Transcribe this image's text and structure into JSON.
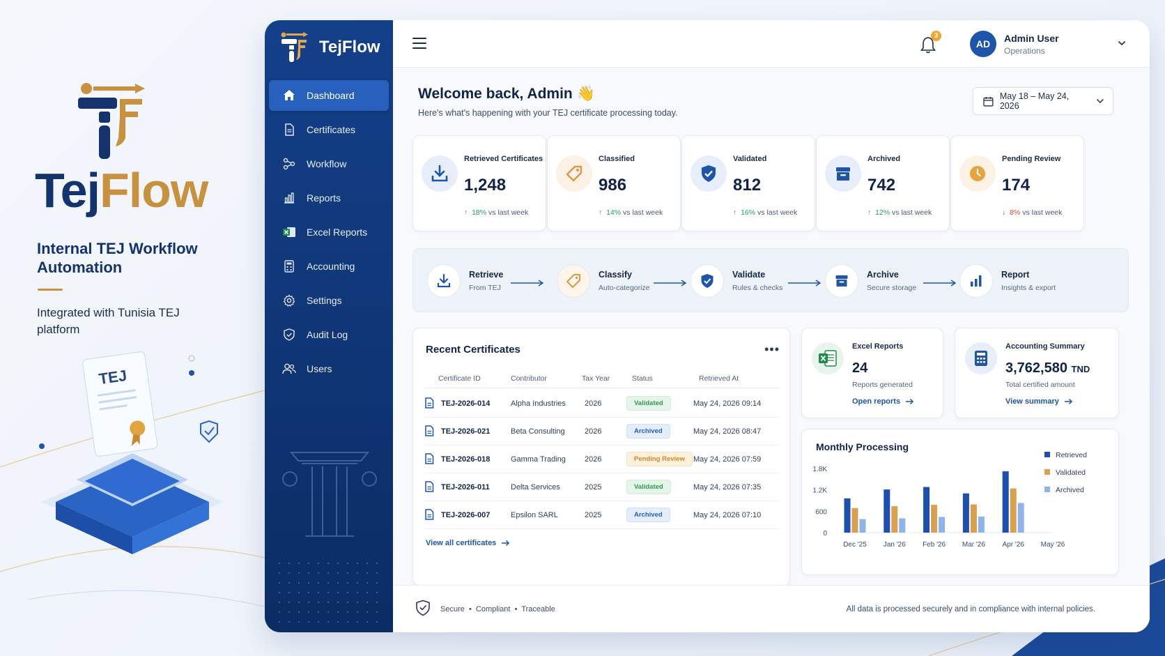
{
  "hero": {
    "title_part1": "Tej",
    "title_part2": "Flow",
    "subtitle": "Internal TEJ Workflow Automation",
    "note": "Integrated with Tunisia TEJ platform",
    "badge_text": "TEJ"
  },
  "sidebar": {
    "brand": "TejFlow",
    "items": [
      {
        "label": "Dashboard",
        "icon": "home-icon",
        "active": true
      },
      {
        "label": "Certificates",
        "icon": "document-icon"
      },
      {
        "label": "Workflow",
        "icon": "workflow-icon"
      },
      {
        "label": "Reports",
        "icon": "bar-chart-icon"
      },
      {
        "label": "Excel Reports",
        "icon": "excel-icon"
      },
      {
        "label": "Accounting",
        "icon": "calculator-icon"
      },
      {
        "label": "Settings",
        "icon": "gear-icon"
      },
      {
        "label": "Audit Log",
        "icon": "shield-icon"
      },
      {
        "label": "Users",
        "icon": "users-icon"
      }
    ]
  },
  "topbar": {
    "notification_count": "3",
    "user_initials": "AD",
    "user_name": "Admin User",
    "user_role": "Operations"
  },
  "header": {
    "welcome": "Welcome back, Admin 👋",
    "subtitle": "Here's what's happening with your TEJ certificate processing today.",
    "date_range": "May 18 – May 24, 2026"
  },
  "stats": [
    {
      "label": "Retrieved Certificates",
      "value": "1,248",
      "delta": "18%",
      "delta_text": "vs last week",
      "direction": "up",
      "color": "#1d55aa"
    },
    {
      "label": "Classified",
      "value": "986",
      "delta": "14%",
      "delta_text": "vs last week",
      "direction": "up",
      "color": "#d9984a"
    },
    {
      "label": "Validated",
      "value": "812",
      "delta": "16%",
      "delta_text": "vs last week",
      "direction": "up",
      "color": "#1d55aa"
    },
    {
      "label": "Archived",
      "value": "742",
      "delta": "12%",
      "delta_text": "vs last week",
      "direction": "up",
      "color": "#1d55aa"
    },
    {
      "label": "Pending Review",
      "value": "174",
      "delta": "8%",
      "delta_text": "vs last week",
      "direction": "down",
      "color": "#e7a33e"
    }
  ],
  "workflow": [
    {
      "name": "Retrieve",
      "desc": "From TEJ"
    },
    {
      "name": "Classify",
      "desc": "Auto-categorize"
    },
    {
      "name": "Validate",
      "desc": "Rules & checks"
    },
    {
      "name": "Archive",
      "desc": "Secure storage"
    },
    {
      "name": "Report",
      "desc": "Insights & export"
    }
  ],
  "recent": {
    "title": "Recent Certificates",
    "columns": [
      "Certificate ID",
      "Contributor",
      "Tax Year",
      "Status",
      "Retrieved At"
    ],
    "rows": [
      {
        "id": "TEJ-2026-014",
        "contributor": "Alpha Industries",
        "year": "2026",
        "status": "Validated",
        "kind": "val",
        "at": "May 24, 2026 09:14"
      },
      {
        "id": "TEJ-2026-021",
        "contributor": "Beta Consulting",
        "year": "2026",
        "status": "Archived",
        "kind": "arc",
        "at": "May 24, 2026 08:47"
      },
      {
        "id": "TEJ-2026-018",
        "contributor": "Gamma Trading",
        "year": "2026",
        "status": "Pending Review",
        "kind": "pen",
        "at": "May 24, 2026 07:59"
      },
      {
        "id": "TEJ-2026-011",
        "contributor": "Delta Services",
        "year": "2025",
        "status": "Validated",
        "kind": "val",
        "at": "May 24, 2026 07:35"
      },
      {
        "id": "TEJ-2026-007",
        "contributor": "Epsilon SARL",
        "year": "2025",
        "status": "Archived",
        "kind": "arc",
        "at": "May 24, 2026 07:10"
      }
    ],
    "view_all": "View all certificates"
  },
  "excel": {
    "label": "Excel Reports",
    "value": "24",
    "desc": "Reports generated",
    "link": "Open reports"
  },
  "accounting": {
    "label": "Accounting Summary",
    "value": "3,762,580",
    "unit": "TND",
    "desc": "Total certified amount",
    "link": "View summary"
  },
  "chart_data": {
    "type": "bar",
    "title": "Monthly Processing",
    "categories": [
      "Dec '25",
      "Jan '26",
      "Feb '26",
      "Mar '26",
      "Apr '26",
      "May '26"
    ],
    "yticks": [
      "0",
      "600",
      "1.2K",
      "1.8K"
    ],
    "ylim": [
      0,
      1800
    ],
    "series": [
      {
        "name": "Retrieved",
        "color": "#1d4fb0",
        "values": [
          960,
          1210,
          1280,
          1100,
          1720,
          0
        ]
      },
      {
        "name": "Validated",
        "color": "#d9a050",
        "values": [
          690,
          740,
          780,
          790,
          1240,
          0
        ]
      },
      {
        "name": "Archived",
        "color": "#8fb4ea",
        "values": [
          380,
          400,
          440,
          450,
          830,
          0
        ]
      }
    ],
    "legend": "right"
  },
  "footer": {
    "left": "Secure  •  Compliant  •  Traceable",
    "right": "All data is processed securely and in compliance with internal policies."
  }
}
